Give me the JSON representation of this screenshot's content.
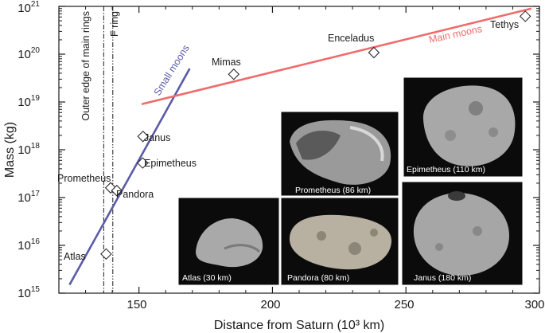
{
  "chart_data": {
    "type": "scatter",
    "xlabel": "Distance from Saturn (10³ km)",
    "ylabel": "Mass (kg)",
    "xlim": [
      120,
      300
    ],
    "ylim_log10": [
      15,
      21
    ],
    "y_scale": "log",
    "grid": false,
    "x_ticks": [
      150,
      200,
      250,
      300
    ],
    "y_ticks": [
      {
        "base": "10",
        "exp": "15"
      },
      {
        "base": "10",
        "exp": "16"
      },
      {
        "base": "10",
        "exp": "17"
      },
      {
        "base": "10",
        "exp": "18"
      },
      {
        "base": "10",
        "exp": "19"
      },
      {
        "base": "10",
        "exp": "20"
      },
      {
        "base": "10",
        "exp": "21"
      }
    ],
    "points": [
      {
        "name": "Atlas",
        "x": 137.7,
        "y": 6600000000000000.0
      },
      {
        "name": "Prometheus",
        "x": 139.4,
        "y": 1.6e+17
      },
      {
        "name": "Pandora",
        "x": 141.7,
        "y": 1.4e+17
      },
      {
        "name": "Epimetheus",
        "x": 151.4,
        "y": 5.3e+17
      },
      {
        "name": "Janus",
        "x": 151.5,
        "y": 1.9e+18
      },
      {
        "name": "Mimas",
        "x": 185.5,
        "y": 3.8e+19
      },
      {
        "name": "Enceladus",
        "x": 238.0,
        "y": 1.08e+20
      },
      {
        "name": "Tethys",
        "x": 294.7,
        "y": 6.2e+20
      }
    ],
    "lines": [
      {
        "name": "Small moons",
        "color": "#5b5ba8",
        "points": [
          [
            124,
            1500000000000000.0
          ],
          [
            169,
            5e+19
          ]
        ]
      },
      {
        "name": "Main moons",
        "color": "#ef6b6b",
        "points": [
          [
            151,
            9e+18
          ],
          [
            297,
            9e+20
          ]
        ]
      }
    ],
    "vlines": [
      {
        "name": "Outer edge of main rings",
        "x": 136.8,
        "style": "dash-dot"
      },
      {
        "name": "F ring",
        "x": 140.2,
        "style": "dash-dot-dot"
      }
    ]
  },
  "photos": [
    {
      "id": "prometheus",
      "caption": "Prometheus (86 km)"
    },
    {
      "id": "epimetheus",
      "caption": "Epimetheus (110 km)"
    },
    {
      "id": "atlas",
      "caption": "Atlas (30 km)"
    },
    {
      "id": "pandora",
      "caption": "Pandora (80 km)"
    },
    {
      "id": "janus",
      "caption": "Janus (180 km)"
    }
  ]
}
